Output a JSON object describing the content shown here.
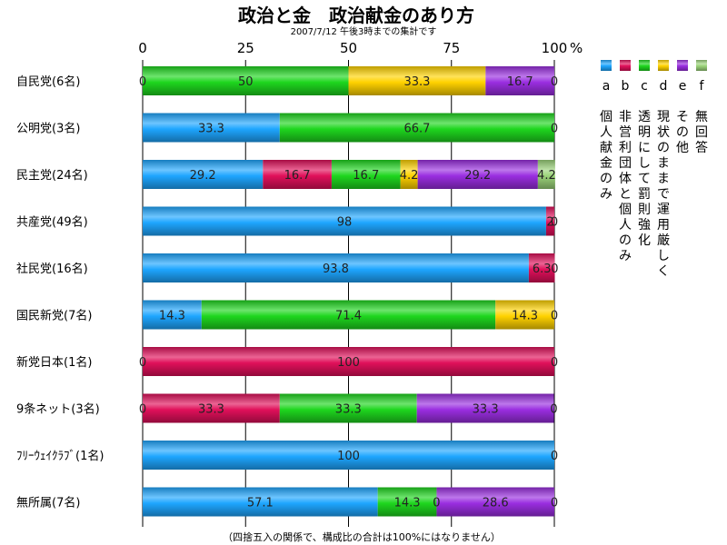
{
  "chart_data": {
    "type": "bar",
    "orientation": "horizontal",
    "stacked": true,
    "title": "政治と金　政治献金のあり方",
    "subtitle": "2007/7/12 午後3時までの集計です",
    "footnote": "（四捨五入の関係で、構成比の合計は100%にはなりません）",
    "xlim": [
      0,
      100
    ],
    "x_ticks": [
      "0",
      "25",
      "50",
      "75",
      "100"
    ],
    "x_unit": "%",
    "grid": true,
    "legend_position": "right",
    "categories": [
      "自民党(6名)",
      "公明党(3名)",
      "民主党(24名)",
      "共産党(49名)",
      "社民党(16名)",
      "国民新党(7名)",
      "新党日本(1名)",
      "9条ネット(3名)",
      "ﾌﾘｰｳｪｲｸﾗﾌﾞ(1名)",
      "無所属(7名)"
    ],
    "series": [
      {
        "key": "a",
        "name": "個人献金のみ",
        "color": "#1ea6ff",
        "values": [
          0,
          33.3,
          29.2,
          98,
          93.8,
          14.3,
          0,
          0,
          100,
          57.1
        ],
        "labels": [
          "0",
          "33.3",
          "29.2",
          "98",
          "93.8",
          "14.3",
          "0",
          "0",
          "100",
          "57.1"
        ]
      },
      {
        "key": "b",
        "name": "非営利団体と個人のみ",
        "color": "#e0105a",
        "values": [
          0,
          0,
          16.7,
          2,
          6.3,
          0,
          100,
          33.3,
          0,
          0
        ],
        "labels": [
          "",
          "",
          "16.7",
          "2",
          "6.3",
          "",
          "100",
          "33.3",
          "",
          ""
        ]
      },
      {
        "key": "c",
        "name": "透明にして罰則強化",
        "color": "#1ed61e",
        "values": [
          50,
          66.7,
          16.7,
          0,
          0,
          71.4,
          0,
          33.3,
          0,
          14.3
        ],
        "labels": [
          "50",
          "66.7",
          "16.7",
          "",
          "",
          "71.4",
          "",
          "33.3",
          "",
          "14.3"
        ]
      },
      {
        "key": "d",
        "name": "現状のままで運用厳しく",
        "color": "#ffd200",
        "values": [
          33.3,
          0,
          4.2,
          0,
          0,
          14.3,
          0,
          0,
          0,
          0
        ],
        "labels": [
          "33.3",
          "",
          "4.2",
          "",
          "",
          "14.3",
          "",
          "",
          "",
          "0"
        ]
      },
      {
        "key": "e",
        "name": "その他",
        "color": "#9a2ee0",
        "values": [
          16.7,
          0,
          29.2,
          0,
          0,
          0,
          0,
          33.3,
          0,
          28.6
        ],
        "labels": [
          "16.7",
          "",
          "29.2",
          "",
          "",
          "",
          "",
          "33.3",
          "",
          "28.6"
        ]
      },
      {
        "key": "f",
        "name": "無回答",
        "color": "#9cd47a",
        "values": [
          0,
          0,
          4.2,
          0,
          0,
          0,
          0,
          0,
          0,
          0
        ],
        "labels": [
          "0",
          "0",
          "4.2",
          "0",
          "0",
          "0",
          "0",
          "0",
          "0",
          "0"
        ]
      }
    ]
  }
}
